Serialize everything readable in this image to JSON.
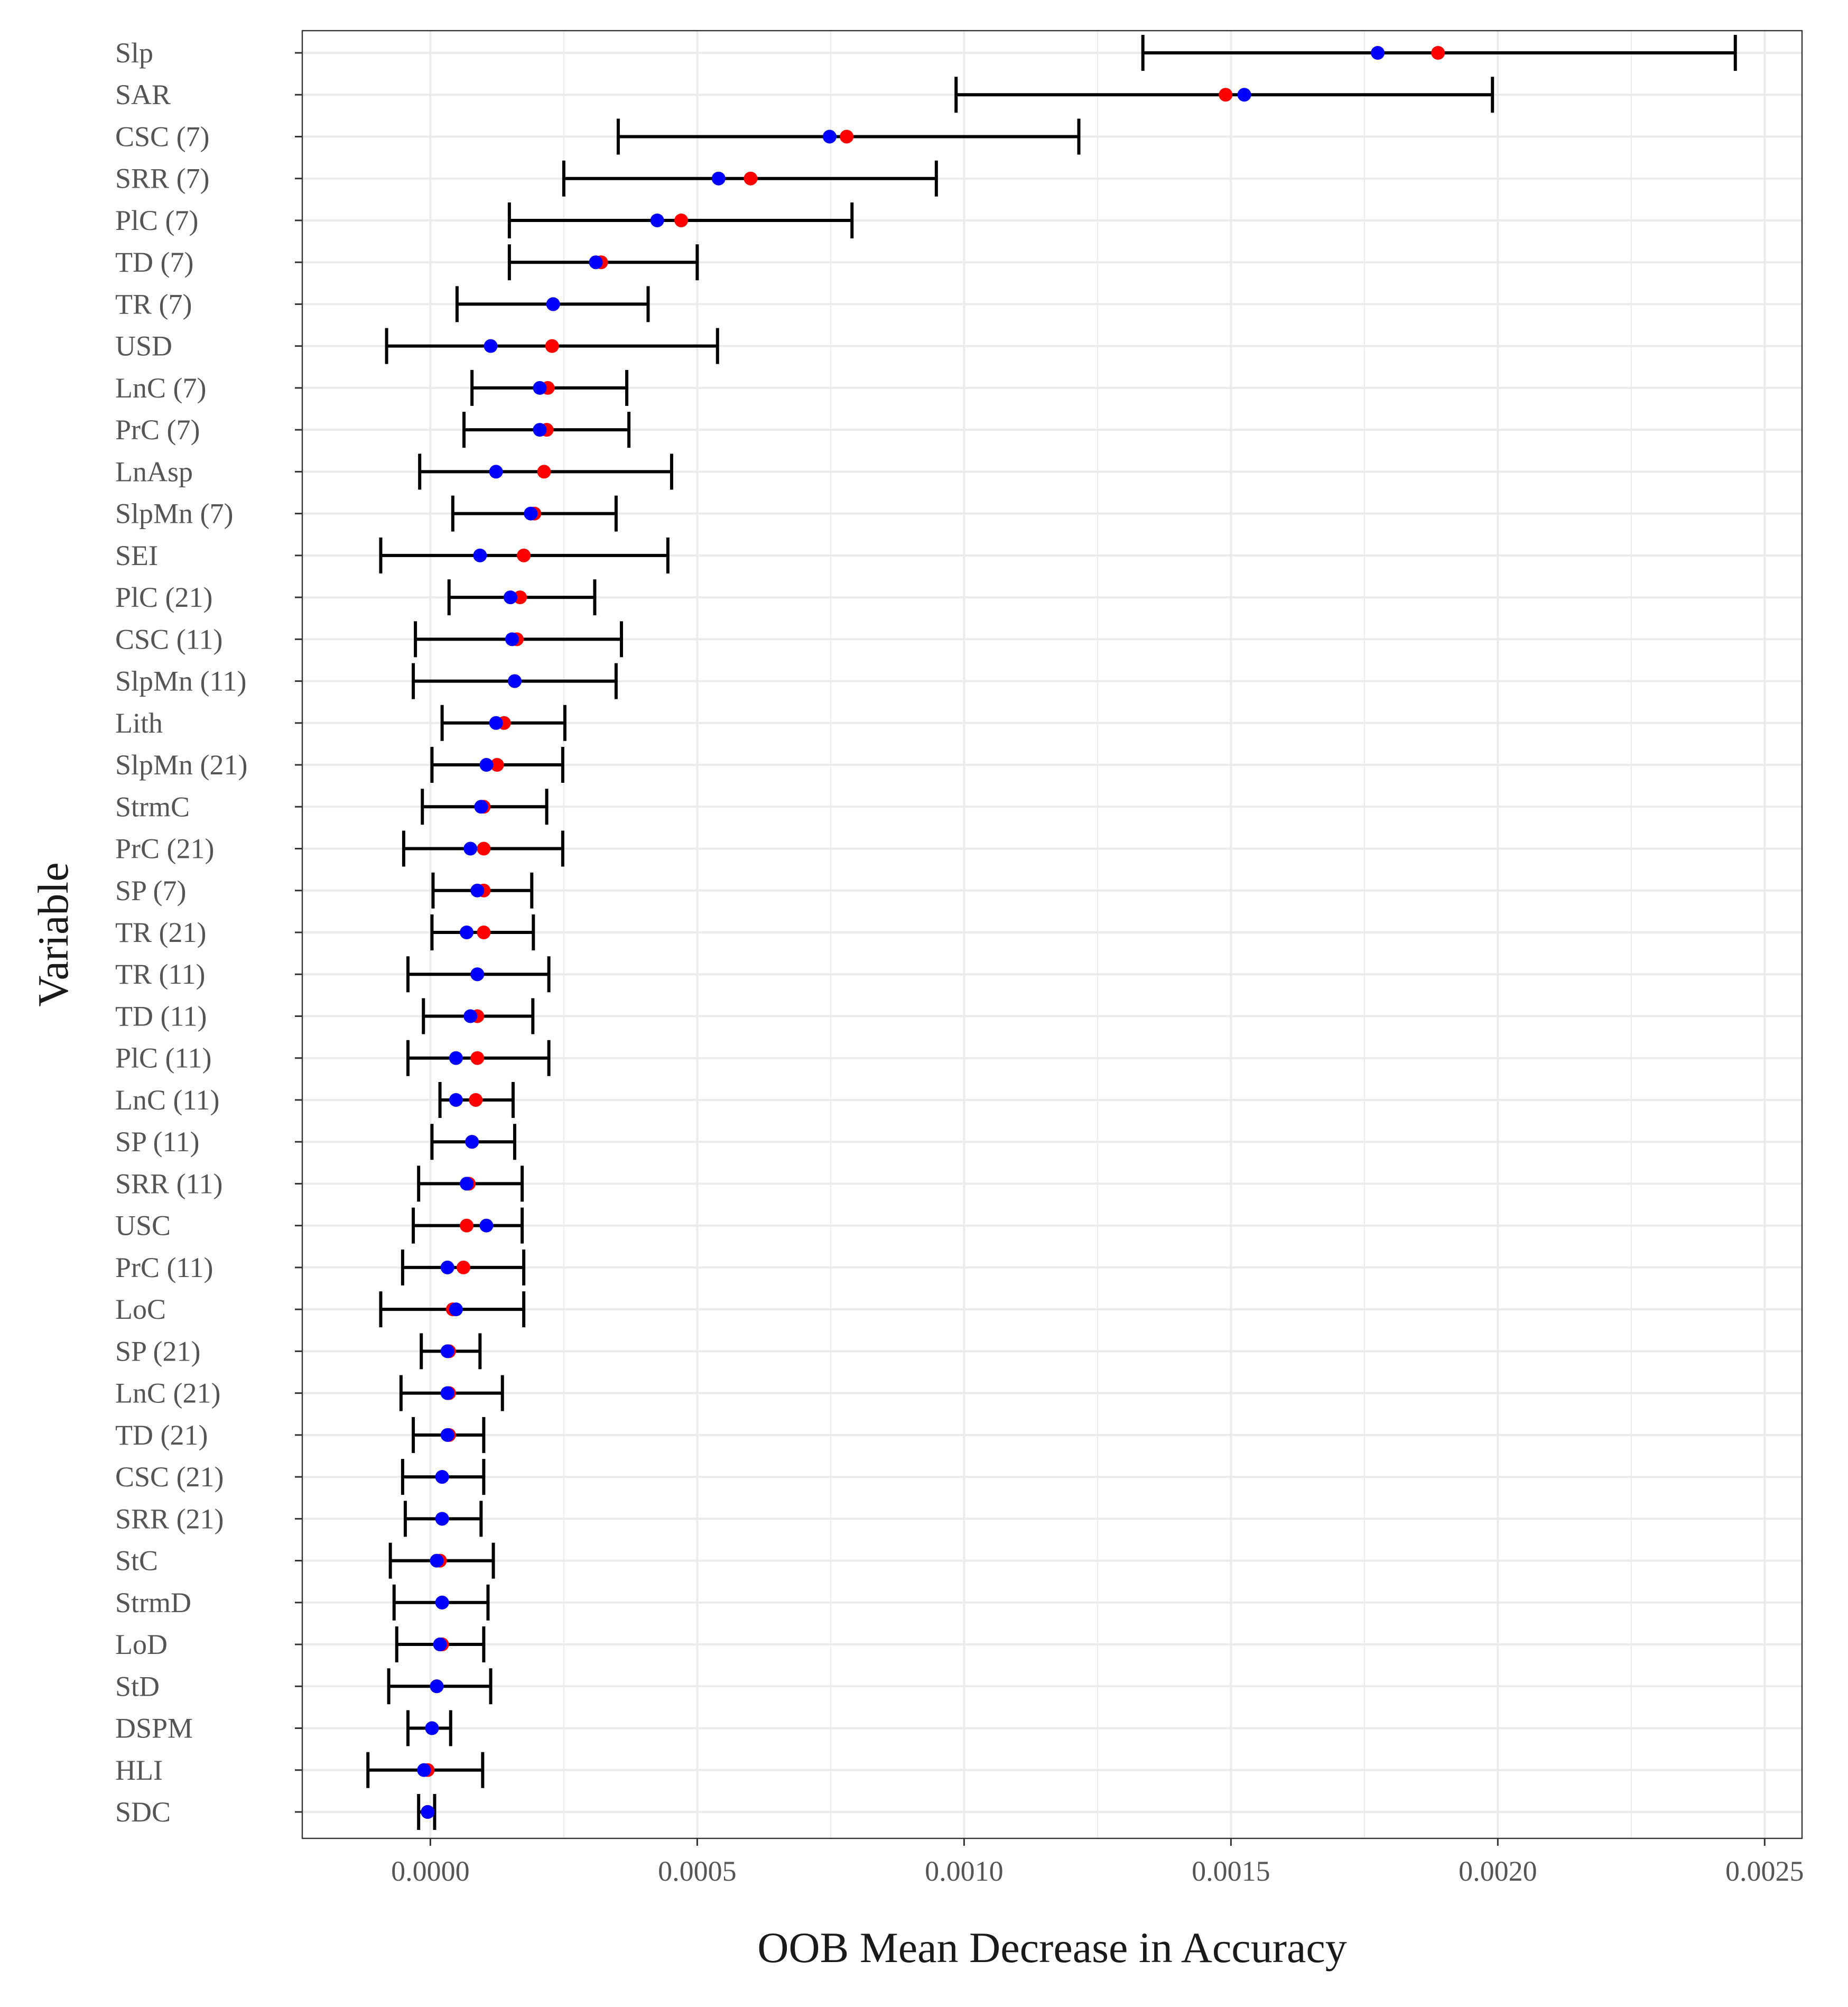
{
  "chart_data": {
    "type": "dot-errorbar",
    "title": "",
    "xlabel": "OOB Mean Decrease in Accuracy",
    "ylabel": "Variable",
    "xlim": [
      -0.00024,
      0.00257
    ],
    "x_ticks": [
      0.0,
      0.0005,
      0.001,
      0.0015,
      0.002,
      0.0025
    ],
    "x_tick_labels": [
      "0.0000",
      "0.0005",
      "0.0010",
      "0.0015",
      "0.0020",
      "0.0025"
    ],
    "grid": true,
    "legend": "none",
    "colors": {
      "red_point": "#ff0000",
      "blue_point": "#0000ff",
      "error_bar": "#000000",
      "grid": "#ebebeb",
      "panel_border": "#333333"
    },
    "rows": [
      {
        "label": "Slp",
        "red": 0.001888,
        "blue": 0.001775,
        "low": 0.001335,
        "high": 0.002445
      },
      {
        "label": "SAR",
        "red": 0.00149,
        "blue": 0.001525,
        "low": 0.000985,
        "high": 0.00199
      },
      {
        "label": "CSC (7)",
        "red": 0.00078,
        "blue": 0.000748,
        "low": 0.000352,
        "high": 0.001215
      },
      {
        "label": "SRR (7)",
        "red": 0.0006,
        "blue": 0.00054,
        "low": 0.00025,
        "high": 0.000948
      },
      {
        "label": "PlC (7)",
        "red": 0.00047,
        "blue": 0.000425,
        "low": 0.000148,
        "high": 0.00079
      },
      {
        "label": "TD (7)",
        "red": 0.00032,
        "blue": 0.00031,
        "low": 0.000148,
        "high": 0.0005
      },
      {
        "label": "TR (7)",
        "red": 0.00023,
        "blue": 0.00023,
        "low": 5e-05,
        "high": 0.000408
      },
      {
        "label": "USD",
        "red": 0.000228,
        "blue": 0.000113,
        "low": -8.2e-05,
        "high": 0.000538
      },
      {
        "label": "LnC (7)",
        "red": 0.00022,
        "blue": 0.000205,
        "low": 7.8e-05,
        "high": 0.000368
      },
      {
        "label": "PrC (7)",
        "red": 0.000218,
        "blue": 0.000205,
        "low": 6.3e-05,
        "high": 0.000372
      },
      {
        "label": "LnAsp",
        "red": 0.000213,
        "blue": 0.000123,
        "low": -2e-05,
        "high": 0.000452
      },
      {
        "label": "SlpMn (7)",
        "red": 0.000195,
        "blue": 0.000188,
        "low": 4.2e-05,
        "high": 0.000348
      },
      {
        "label": "SEI",
        "red": 0.000175,
        "blue": 9.3e-05,
        "low": -9.3e-05,
        "high": 0.000445
      },
      {
        "label": "PlC (21)",
        "red": 0.000168,
        "blue": 0.00015,
        "low": 3.5e-05,
        "high": 0.000308
      },
      {
        "label": "CSC (11)",
        "red": 0.000162,
        "blue": 0.000153,
        "low": -2.8e-05,
        "high": 0.000358
      },
      {
        "label": "SlpMn (11)",
        "red": 0.000158,
        "blue": 0.000158,
        "low": -3.2e-05,
        "high": 0.000348
      },
      {
        "label": "Lith",
        "red": 0.000138,
        "blue": 0.000123,
        "low": 2.2e-05,
        "high": 0.000252
      },
      {
        "label": "SlpMn (21)",
        "red": 0.000125,
        "blue": 0.000105,
        "low": 3e-06,
        "high": 0.000248
      },
      {
        "label": "StrmC",
        "red": 0.0001,
        "blue": 9.5e-05,
        "low": -1.5e-05,
        "high": 0.000218
      },
      {
        "label": "PrC (21)",
        "red": 0.0001,
        "blue": 7.5e-05,
        "low": -5e-05,
        "high": 0.000248
      },
      {
        "label": "SP (7)",
        "red": 0.0001,
        "blue": 8.8e-05,
        "low": 5e-06,
        "high": 0.00019
      },
      {
        "label": "TR (21)",
        "red": 0.0001,
        "blue": 6.8e-05,
        "low": 3e-06,
        "high": 0.000193
      },
      {
        "label": "TR (11)",
        "red": 8.8e-05,
        "blue": 8.8e-05,
        "low": -4.2e-05,
        "high": 0.000222
      },
      {
        "label": "TD (11)",
        "red": 8.8e-05,
        "blue": 7.5e-05,
        "low": -1.3e-05,
        "high": 0.000192
      },
      {
        "label": "PlC (11)",
        "red": 8.8e-05,
        "blue": 4.8e-05,
        "low": -4.2e-05,
        "high": 0.000222
      },
      {
        "label": "LnC (11)",
        "red": 8.5e-05,
        "blue": 4.8e-05,
        "low": 1.8e-05,
        "high": 0.000155
      },
      {
        "label": "SP (11)",
        "red": 7.8e-05,
        "blue": 7.8e-05,
        "low": 3e-06,
        "high": 0.000158
      },
      {
        "label": "SRR (11)",
        "red": 7.2e-05,
        "blue": 6.8e-05,
        "low": -2.2e-05,
        "high": 0.000172
      },
      {
        "label": "USC",
        "red": 6.8e-05,
        "blue": 0.000105,
        "low": -3.2e-05,
        "high": 0.000172
      },
      {
        "label": "PrC (11)",
        "red": 6.2e-05,
        "blue": 3.2e-05,
        "low": -5.2e-05,
        "high": 0.000175
      },
      {
        "label": "LoC",
        "red": 4.2e-05,
        "blue": 4.8e-05,
        "low": -9.3e-05,
        "high": 0.000175
      },
      {
        "label": "SP (21)",
        "red": 3.5e-05,
        "blue": 3.2e-05,
        "low": -1.7e-05,
        "high": 9.3e-05
      },
      {
        "label": "LnC (21)",
        "red": 3.5e-05,
        "blue": 3.2e-05,
        "low": -5.5e-05,
        "high": 0.000135
      },
      {
        "label": "TD (21)",
        "red": 3.5e-05,
        "blue": 3.2e-05,
        "low": -3.2e-05,
        "high": 0.0001
      },
      {
        "label": "CSC (21)",
        "red": 2.2e-05,
        "blue": 2.2e-05,
        "low": -5.2e-05,
        "high": 0.0001
      },
      {
        "label": "SRR (21)",
        "red": 2.2e-05,
        "blue": 2.2e-05,
        "low": -4.7e-05,
        "high": 9.5e-05
      },
      {
        "label": "StC",
        "red": 1.8e-05,
        "blue": 1.2e-05,
        "low": -7.5e-05,
        "high": 0.000118
      },
      {
        "label": "StrmD",
        "red": 2.2e-05,
        "blue": 2.2e-05,
        "low": -6.8e-05,
        "high": 0.000108
      },
      {
        "label": "LoD",
        "red": 2.2e-05,
        "blue": 1.8e-05,
        "low": -6.3e-05,
        "high": 0.0001
      },
      {
        "label": "StD",
        "red": 1.2e-05,
        "blue": 1.2e-05,
        "low": -7.8e-05,
        "high": 0.000113
      },
      {
        "label": "DSPM",
        "red": 3e-06,
        "blue": 3e-06,
        "low": -4.2e-05,
        "high": 3.8e-05
      },
      {
        "label": "HLI",
        "red": -5e-06,
        "blue": -1.2e-05,
        "low": -0.000117,
        "high": 9.8e-05
      },
      {
        "label": "SDC",
        "red": -5e-06,
        "blue": -5e-06,
        "low": -2.2e-05,
        "high": 8e-06
      }
    ]
  }
}
